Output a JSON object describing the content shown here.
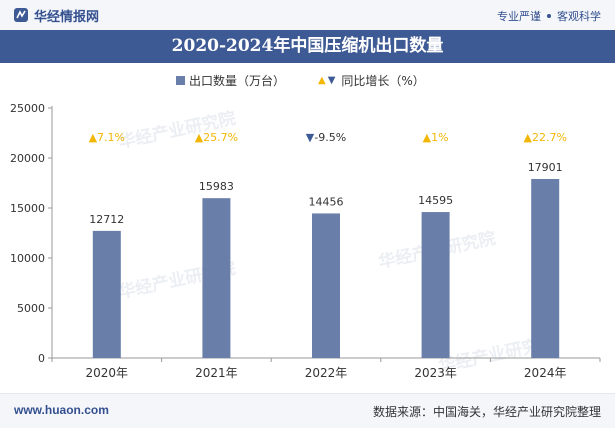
{
  "header": {
    "brand": "华经情报网",
    "tagline_left": "专业严谨",
    "tagline_right": "客观科学"
  },
  "watermark": {
    "text": "华经产业研究院",
    "url": "www.huaon.com"
  },
  "chart_data": {
    "type": "bar",
    "title": "2020-2024年中国压缩机出口数量",
    "categories": [
      "2020年",
      "2021年",
      "2022年",
      "2023年",
      "2024年"
    ],
    "series": [
      {
        "name": "出口数量（万台）",
        "values": [
          12712,
          15983,
          14456,
          14595,
          17901
        ],
        "color": "#697ea8"
      }
    ],
    "growth": {
      "name": "同比增长（%）",
      "labels": [
        "7.1%",
        "25.7%",
        "-9.5%",
        "1%",
        "22.7%"
      ],
      "values": [
        7.1,
        25.7,
        -9.5,
        1,
        22.7
      ],
      "up_color": "#f2b705",
      "down_color": "#3e5a94"
    },
    "ylim": [
      0,
      25000
    ],
    "yticks": [
      0,
      5000,
      10000,
      15000,
      20000,
      25000
    ],
    "legend_position": "top",
    "grid": false
  },
  "footer": {
    "url": "www.huaon.com",
    "source": "数据来源：中国海关，华经产业研究院整理"
  }
}
